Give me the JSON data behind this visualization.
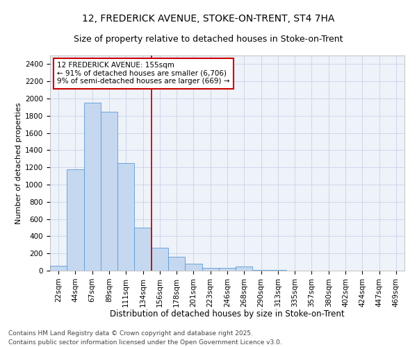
{
  "title_line1": "12, FREDERICK AVENUE, STOKE-ON-TRENT, ST4 7HA",
  "title_line2": "Size of property relative to detached houses in Stoke-on-Trent",
  "xlabel": "Distribution of detached houses by size in Stoke-on-Trent",
  "ylabel": "Number of detached properties",
  "categories": [
    "22sqm",
    "44sqm",
    "67sqm",
    "89sqm",
    "111sqm",
    "134sqm",
    "156sqm",
    "178sqm",
    "201sqm",
    "223sqm",
    "246sqm",
    "268sqm",
    "290sqm",
    "313sqm",
    "335sqm",
    "357sqm",
    "380sqm",
    "402sqm",
    "424sqm",
    "447sqm",
    "469sqm"
  ],
  "values": [
    60,
    1180,
    1950,
    1850,
    1250,
    500,
    270,
    160,
    80,
    35,
    30,
    50,
    10,
    5,
    2,
    2,
    1,
    1,
    0,
    0,
    0
  ],
  "bar_color": "#c5d8f0",
  "bar_edge_color": "#5b9bd5",
  "grid_color": "#c8d4e8",
  "background_color": "#eef2f9",
  "annotation_line1": "12 FREDERICK AVENUE: 155sqm",
  "annotation_line2": "← 91% of detached houses are smaller (6,706)",
  "annotation_line3": "9% of semi-detached houses are larger (669) →",
  "annotation_box_color": "#ffffff",
  "annotation_box_edge_color": "#cc0000",
  "vline_color": "#cc0000",
  "ylim": [
    0,
    2500
  ],
  "yticks": [
    0,
    200,
    400,
    600,
    800,
    1000,
    1200,
    1400,
    1600,
    1800,
    2000,
    2200,
    2400
  ],
  "footer_line1": "Contains HM Land Registry data © Crown copyright and database right 2025.",
  "footer_line2": "Contains public sector information licensed under the Open Government Licence v3.0.",
  "title_fontsize": 10,
  "subtitle_fontsize": 9,
  "xlabel_fontsize": 8.5,
  "ylabel_fontsize": 8,
  "tick_fontsize": 7.5,
  "annotation_fontsize": 7.5,
  "footer_fontsize": 6.5
}
